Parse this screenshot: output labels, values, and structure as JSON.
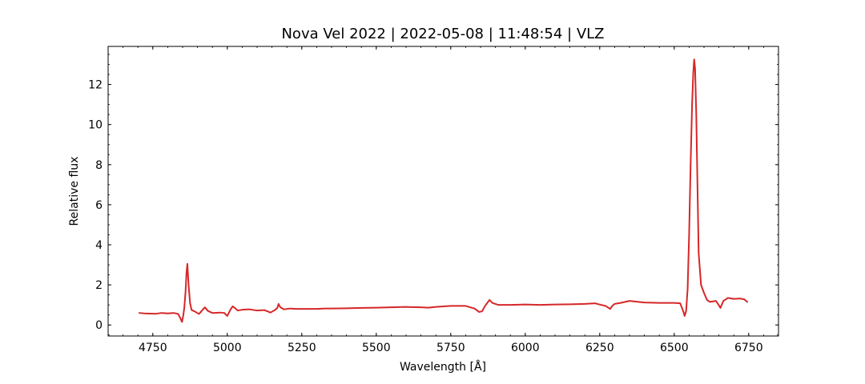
{
  "chart_data": {
    "type": "line",
    "title": "Nova Vel 2022 | 2022-05-08 | 11:48:54 | VLZ",
    "xlabel": "Wavelength [Å]",
    "ylabel": "Relative flux",
    "xlim": [
      4600,
      6850
    ],
    "ylim": [
      -0.55,
      13.9
    ],
    "xticks": [
      4750,
      5000,
      5250,
      5500,
      5750,
      6000,
      6250,
      6500,
      6750
    ],
    "yticks": [
      0,
      2,
      4,
      6,
      8,
      10,
      12
    ],
    "x_minor_step": 50,
    "y_minor_step": 0.5,
    "ticks_direction": "in",
    "grid": false,
    "legend": "none",
    "series": [
      {
        "color": "#d62728",
        "x": [
          4705,
          4720,
          4740,
          4760,
          4780,
          4800,
          4820,
          4835,
          4842,
          4848,
          4852,
          4856,
          4860,
          4863,
          4866,
          4870,
          4875,
          4880,
          4890,
          4905,
          4915,
          4925,
          4935,
          4950,
          4975,
          4990,
          5000,
          5010,
          5018,
          5025,
          5035,
          5050,
          5075,
          5100,
          5125,
          5145,
          5160,
          5168,
          5172,
          5178,
          5190,
          5210,
          5230,
          5250,
          5275,
          5300,
          5330,
          5350,
          5400,
          5450,
          5500,
          5550,
          5600,
          5650,
          5675,
          5700,
          5750,
          5800,
          5830,
          5845,
          5855,
          5865,
          5875,
          5880,
          5890,
          5910,
          5950,
          6000,
          6050,
          6100,
          6150,
          6200,
          6235,
          6250,
          6270,
          6285,
          6292,
          6300,
          6320,
          6350,
          6380,
          6400,
          6450,
          6500,
          6520,
          6530,
          6535,
          6540,
          6545,
          6550,
          6555,
          6560,
          6564,
          6567,
          6570,
          6574,
          6578,
          6582,
          6590,
          6600,
          6610,
          6620,
          6640,
          6650,
          6655,
          6665,
          6680,
          6700,
          6720,
          6735,
          6745
        ],
        "values": [
          0.6,
          0.58,
          0.57,
          0.56,
          0.6,
          0.58,
          0.6,
          0.55,
          0.35,
          0.15,
          0.45,
          0.9,
          1.7,
          2.6,
          3.05,
          2.0,
          1.1,
          0.75,
          0.68,
          0.55,
          0.72,
          0.88,
          0.7,
          0.6,
          0.62,
          0.6,
          0.45,
          0.75,
          0.93,
          0.85,
          0.72,
          0.76,
          0.78,
          0.72,
          0.74,
          0.62,
          0.75,
          0.85,
          1.05,
          0.88,
          0.78,
          0.82,
          0.8,
          0.8,
          0.8,
          0.8,
          0.82,
          0.82,
          0.83,
          0.85,
          0.86,
          0.88,
          0.9,
          0.88,
          0.86,
          0.9,
          0.95,
          0.95,
          0.82,
          0.65,
          0.68,
          0.95,
          1.15,
          1.25,
          1.1,
          1.0,
          1.0,
          1.02,
          1.0,
          1.02,
          1.03,
          1.05,
          1.08,
          1.02,
          0.95,
          0.8,
          0.95,
          1.05,
          1.1,
          1.2,
          1.15,
          1.12,
          1.1,
          1.1,
          1.08,
          0.7,
          0.45,
          0.7,
          1.8,
          4.5,
          8.0,
          11.0,
          12.6,
          13.25,
          12.8,
          10.5,
          7.0,
          3.6,
          2.0,
          1.6,
          1.25,
          1.15,
          1.2,
          0.98,
          0.85,
          1.2,
          1.35,
          1.3,
          1.32,
          1.28,
          1.15
        ]
      }
    ]
  }
}
